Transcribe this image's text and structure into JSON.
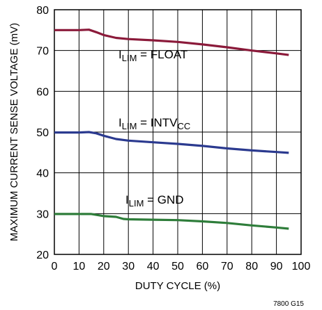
{
  "chart_data": {
    "type": "line",
    "xlabel": "DUTY CYCLE (%)",
    "ylabel": "MAXIMUM CURRENT SENSE VOLTAGE (mV)",
    "xlim": [
      0,
      100
    ],
    "ylim": [
      20,
      80
    ],
    "x_ticks": [
      "0",
      "10",
      "20",
      "30",
      "40",
      "50",
      "60",
      "70",
      "80",
      "90",
      "100"
    ],
    "y_ticks": [
      "20",
      "30",
      "40",
      "50",
      "60",
      "70",
      "80"
    ],
    "grid": true,
    "series": [
      {
        "name": "FLOAT",
        "label_main": "I",
        "label_sub": "LIM",
        "label_rest": " = FLOAT",
        "label_suffix_sub": "",
        "color": "#8b1a3a",
        "points": [
          [
            0,
            75
          ],
          [
            5,
            75
          ],
          [
            10,
            75
          ],
          [
            14,
            75.1
          ],
          [
            17,
            74.5
          ],
          [
            20,
            73.8
          ],
          [
            25,
            73.1
          ],
          [
            30,
            72.8
          ],
          [
            40,
            72.5
          ],
          [
            50,
            72.1
          ],
          [
            60,
            71.5
          ],
          [
            70,
            70.8
          ],
          [
            80,
            70.0
          ],
          [
            90,
            69.3
          ],
          [
            95,
            68.9
          ]
        ]
      },
      {
        "name": "INTVCC",
        "label_main": "I",
        "label_sub": "LIM",
        "label_rest": " = INTV",
        "label_suffix_sub": "CC",
        "color": "#2b3a8f",
        "points": [
          [
            0,
            49.9
          ],
          [
            5,
            49.9
          ],
          [
            10,
            49.9
          ],
          [
            14,
            50.0
          ],
          [
            17,
            49.7
          ],
          [
            20,
            49.1
          ],
          [
            25,
            48.3
          ],
          [
            30,
            47.9
          ],
          [
            40,
            47.5
          ],
          [
            50,
            47.1
          ],
          [
            60,
            46.6
          ],
          [
            70,
            46.0
          ],
          [
            80,
            45.5
          ],
          [
            90,
            45.1
          ],
          [
            95,
            44.9
          ]
        ]
      },
      {
        "name": "GND",
        "label_main": "I",
        "label_sub": "LIM",
        "label_rest": " = GND",
        "label_suffix_sub": "",
        "color": "#2e7d3a",
        "points": [
          [
            0,
            29.9
          ],
          [
            5,
            29.9
          ],
          [
            10,
            29.9
          ],
          [
            15,
            29.9
          ],
          [
            18,
            29.6
          ],
          [
            20,
            29.4
          ],
          [
            25,
            29.2
          ],
          [
            28,
            28.7
          ],
          [
            30,
            28.6
          ],
          [
            40,
            28.5
          ],
          [
            50,
            28.4
          ],
          [
            60,
            28.1
          ],
          [
            70,
            27.7
          ],
          [
            80,
            27.1
          ],
          [
            90,
            26.6
          ],
          [
            95,
            26.3
          ]
        ]
      }
    ],
    "figure_id": "7800 G15"
  }
}
